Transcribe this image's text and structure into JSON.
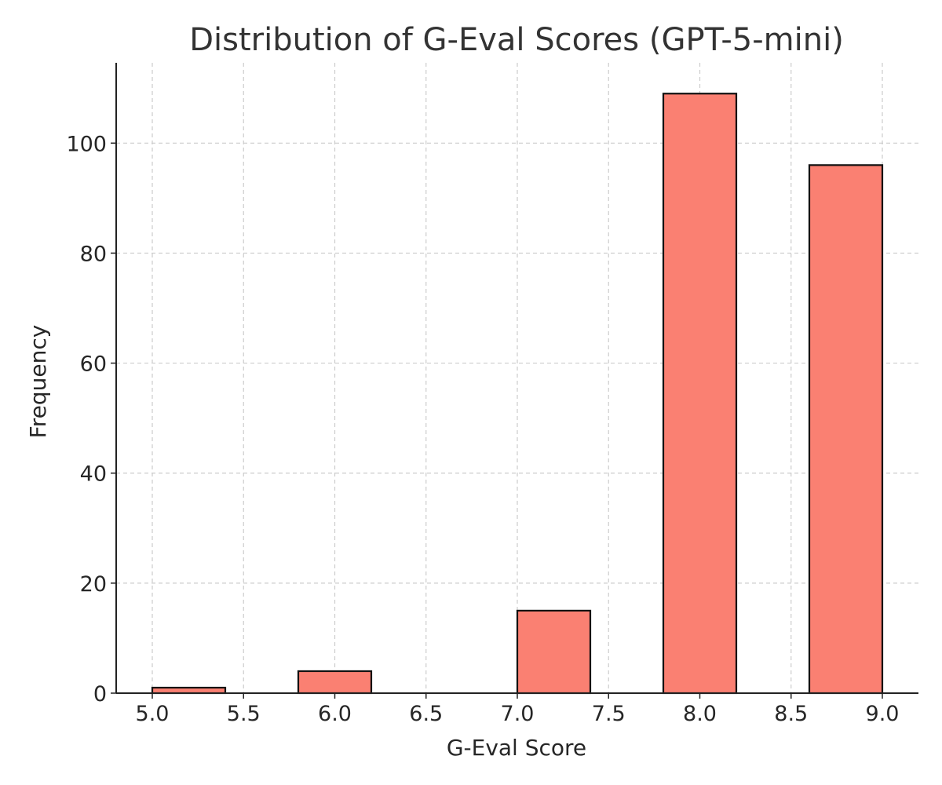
{
  "chart_data": {
    "type": "bar",
    "title": "Distribution of G-Eval Scores (GPT-5-mini)",
    "xlabel": "G-Eval Score",
    "ylabel": "Frequency",
    "bins": [
      {
        "x_start": 5.0,
        "x_end": 5.4,
        "count": 1
      },
      {
        "x_start": 5.8,
        "x_end": 6.2,
        "count": 4
      },
      {
        "x_start": 7.0,
        "x_end": 7.4,
        "count": 15
      },
      {
        "x_start": 7.8,
        "x_end": 8.2,
        "count": 109
      },
      {
        "x_start": 8.6,
        "x_end": 9.0,
        "count": 96
      }
    ],
    "xlim": [
      4.8,
      9.2
    ],
    "ylim": [
      0,
      110
    ],
    "xticks": [
      "5.0",
      "5.5",
      "6.0",
      "6.5",
      "7.0",
      "7.5",
      "8.0",
      "8.5",
      "9.0"
    ],
    "yticks": [
      "0",
      "20",
      "40",
      "60",
      "80",
      "100"
    ],
    "grid": true,
    "bar_color": "#FA8072",
    "edge_color": "#111111",
    "grid_color": "#cccccc"
  }
}
